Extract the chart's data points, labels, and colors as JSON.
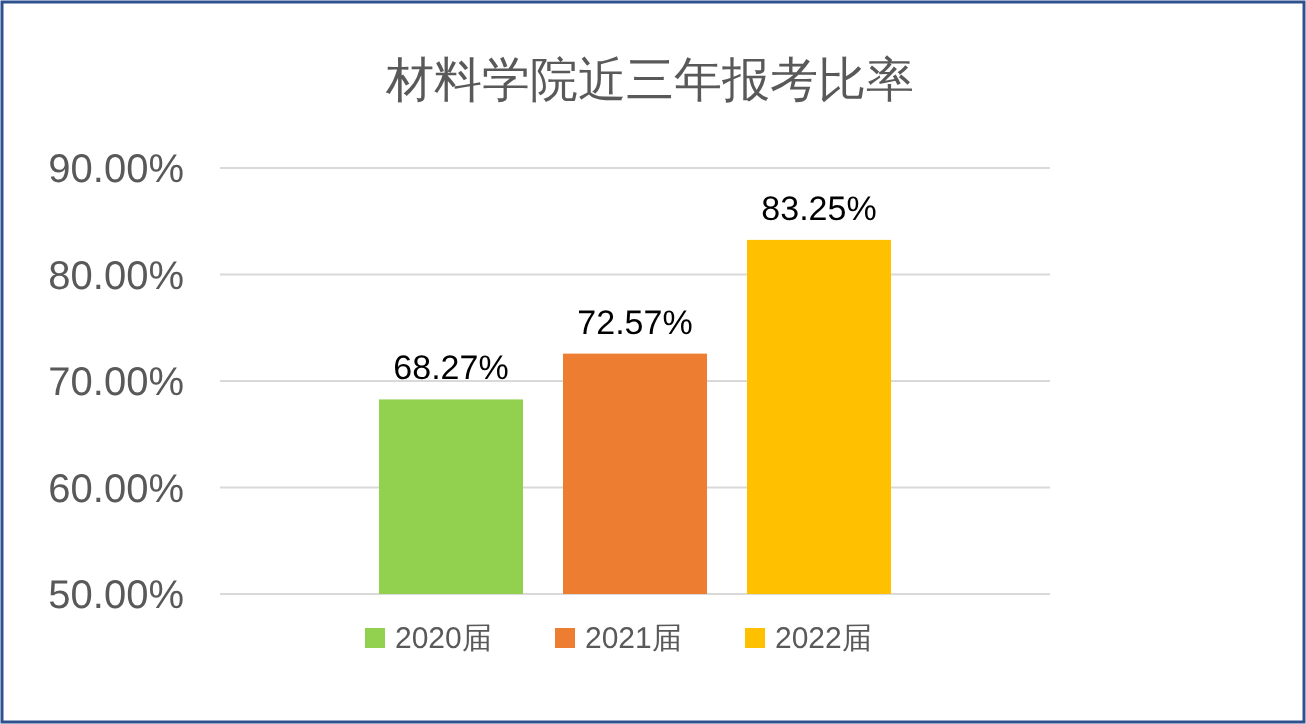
{
  "chart_data": {
    "type": "bar",
    "title": "材料学院近三年报考比率",
    "categories": [
      null
    ],
    "series": [
      {
        "name": "2020届",
        "color": "#92d050",
        "values": [
          68.27
        ],
        "value_labels": [
          "68.27%"
        ]
      },
      {
        "name": "2021届",
        "color": "#ed7d31",
        "values": [
          72.57
        ],
        "value_labels": [
          "72.57%"
        ]
      },
      {
        "name": "2022届",
        "color": "#ffc000",
        "values": [
          83.25
        ],
        "value_labels": [
          "83.25%"
        ]
      }
    ],
    "ylim": [
      50,
      90
    ],
    "yticks": [
      {
        "value": 50,
        "label": "50.00%"
      },
      {
        "value": 60,
        "label": "60.00%"
      },
      {
        "value": 70,
        "label": "70.00%"
      },
      {
        "value": 80,
        "label": "80.00%"
      },
      {
        "value": 90,
        "label": "90.00%"
      }
    ],
    "grid": "y",
    "legend": "bottom"
  }
}
